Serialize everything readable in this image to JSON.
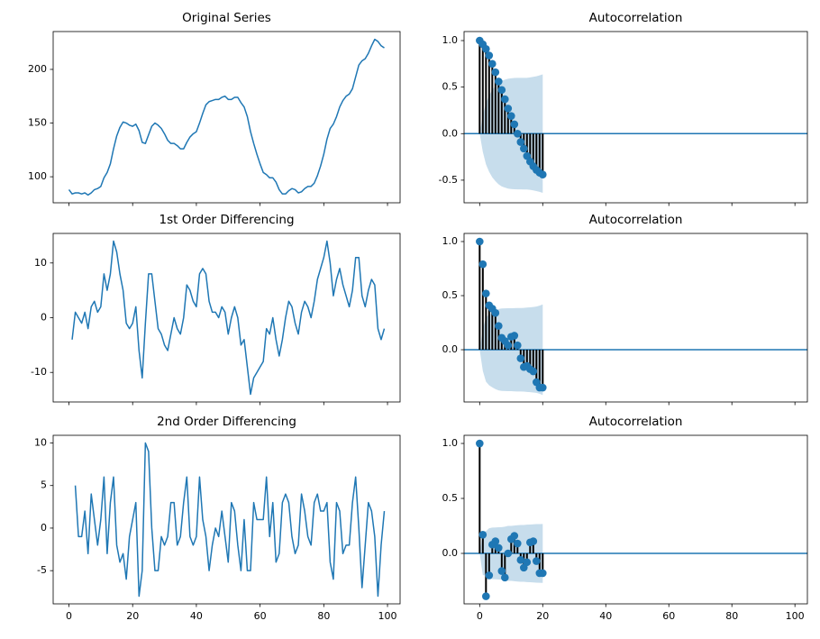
{
  "chart_data": [
    {
      "type": "line",
      "title": "Original Series",
      "color": "#1f77b4",
      "x": [
        0,
        1,
        2,
        3,
        4,
        5,
        6,
        7,
        8,
        9,
        10,
        11,
        12,
        13,
        14,
        15,
        16,
        17,
        18,
        19,
        20,
        21,
        22,
        23,
        24,
        25,
        26,
        27,
        28,
        29,
        30,
        31,
        32,
        33,
        34,
        35,
        36,
        37,
        38,
        39,
        40,
        41,
        42,
        43,
        44,
        45,
        46,
        47,
        48,
        49,
        50,
        51,
        52,
        53,
        54,
        55,
        56,
        57,
        58,
        59,
        60,
        61,
        62,
        63,
        64,
        65,
        66,
        67,
        68,
        69,
        70,
        71,
        72,
        73,
        74,
        75,
        76,
        77,
        78,
        79,
        80,
        81,
        82,
        83,
        84,
        85,
        86,
        87,
        88,
        89,
        90,
        91,
        92,
        93,
        94,
        95,
        96,
        97,
        98,
        99
      ],
      "values": [
        88,
        84,
        85,
        85,
        84,
        85,
        83,
        85,
        88,
        89,
        91,
        99,
        104,
        112,
        126,
        138,
        146,
        151,
        150,
        148,
        147,
        149,
        143,
        132,
        131,
        139,
        147,
        150,
        148,
        145,
        140,
        134,
        131,
        131,
        129,
        126,
        126,
        132,
        137,
        140,
        142,
        150,
        159,
        167,
        170,
        171,
        172,
        172,
        174,
        175,
        172,
        172,
        174,
        174,
        169,
        165,
        156,
        142,
        131,
        121,
        112,
        104,
        102,
        99,
        99,
        95,
        88,
        84,
        84,
        87,
        89,
        88,
        85,
        86,
        89,
        91,
        91,
        94,
        101,
        110,
        121,
        135,
        145,
        149,
        156,
        165,
        171,
        175,
        177,
        182,
        193,
        204,
        208,
        210,
        215,
        222,
        228,
        226,
        222,
        220
      ],
      "xlim": [
        -4.95,
        103.95
      ],
      "xticks": [
        0,
        20,
        40,
        60,
        80,
        100
      ],
      "show_xtick_labels": false,
      "ylim": [
        75.75,
        235.25
      ],
      "yticks": [
        100,
        150,
        200
      ]
    },
    {
      "type": "stem",
      "title": "Autocorrelation",
      "color": "#1f77b4",
      "stem_color": "#000000",
      "x": [
        0,
        1,
        2,
        3,
        4,
        5,
        6,
        7,
        8,
        9,
        10,
        11,
        12,
        13,
        14,
        15,
        16,
        17,
        18,
        19,
        20
      ],
      "values": [
        1.0,
        0.96,
        0.91,
        0.84,
        0.75,
        0.66,
        0.56,
        0.47,
        0.37,
        0.27,
        0.19,
        0.1,
        0.0,
        -0.09,
        -0.16,
        -0.24,
        -0.3,
        -0.35,
        -0.39,
        -0.42,
        -0.44
      ],
      "confidence_band": [
        0,
        0.196,
        0.33,
        0.41,
        0.47,
        0.51,
        0.545,
        0.567,
        0.58,
        0.59,
        0.595,
        0.598,
        0.599,
        0.599,
        0.6,
        0.6,
        0.604,
        0.61,
        0.617,
        0.626,
        0.637
      ],
      "xlim": [
        -4.95,
        103.95
      ],
      "xticks": [
        0,
        20,
        40,
        60,
        80,
        100
      ],
      "show_xtick_labels": false,
      "ylim": [
        -0.743,
        1.097
      ],
      "yticks": [
        -0.5,
        {
          "value": 0,
          "label": "0.0"
        },
        0.5,
        {
          "value": 1,
          "label": "1.0"
        }
      ]
    },
    {
      "type": "line",
      "title": "1st Order Differencing",
      "color": "#1f77b4",
      "x": [
        1,
        2,
        3,
        4,
        5,
        6,
        7,
        8,
        9,
        10,
        11,
        12,
        13,
        14,
        15,
        16,
        17,
        18,
        19,
        20,
        21,
        22,
        23,
        24,
        25,
        26,
        27,
        28,
        29,
        30,
        31,
        32,
        33,
        34,
        35,
        36,
        37,
        38,
        39,
        40,
        41,
        42,
        43,
        44,
        45,
        46,
        47,
        48,
        49,
        50,
        51,
        52,
        53,
        54,
        55,
        56,
        57,
        58,
        59,
        60,
        61,
        62,
        63,
        64,
        65,
        66,
        67,
        68,
        69,
        70,
        71,
        72,
        73,
        74,
        75,
        76,
        77,
        78,
        79,
        80,
        81,
        82,
        83,
        84,
        85,
        86,
        87,
        88,
        89,
        90,
        91,
        92,
        93,
        94,
        95,
        96,
        97,
        98,
        99
      ],
      "values": [
        -4,
        1,
        0,
        -1,
        1,
        -2,
        2,
        3,
        1,
        2,
        8,
        5,
        8,
        14,
        12,
        8,
        5,
        -1,
        -2,
        -1,
        2,
        -6,
        -11,
        -1,
        8,
        8,
        3,
        -2,
        -3,
        -5,
        -6,
        -3,
        0,
        -2,
        -3,
        0,
        6,
        5,
        3,
        2,
        8,
        9,
        8,
        3,
        1,
        1,
        0,
        2,
        1,
        -3,
        0,
        2,
        0,
        -5,
        -4,
        -9,
        -14,
        -11,
        -10,
        -9,
        -8,
        -2,
        -3,
        0,
        -4,
        -7,
        -4,
        0,
        3,
        2,
        -1,
        -3,
        1,
        3,
        2,
        0,
        3,
        7,
        9,
        11,
        14,
        10,
        4,
        7,
        9,
        6,
        4,
        2,
        5,
        11,
        11,
        4,
        2,
        5,
        7,
        6,
        -2,
        -4,
        -2
      ],
      "xlim": [
        -4.95,
        103.95
      ],
      "xticks": [
        0,
        20,
        40,
        60,
        80,
        100
      ],
      "show_xtick_labels": false,
      "ylim": [
        -15.4,
        15.4
      ],
      "yticks": [
        -10,
        0,
        10
      ]
    },
    {
      "type": "stem",
      "title": "Autocorrelation",
      "color": "#1f77b4",
      "stem_color": "#000000",
      "x": [
        0,
        1,
        2,
        3,
        4,
        5,
        6,
        7,
        8,
        9,
        10,
        11,
        12,
        13,
        14,
        15,
        16,
        17,
        18,
        19,
        20
      ],
      "values": [
        1.0,
        0.79,
        0.52,
        0.41,
        0.38,
        0.34,
        0.22,
        0.11,
        0.08,
        0.04,
        0.12,
        0.13,
        0.04,
        -0.08,
        -0.16,
        -0.15,
        -0.18,
        -0.2,
        -0.3,
        -0.35,
        -0.35
      ],
      "confidence_band": [
        0,
        0.196,
        0.296,
        0.329,
        0.348,
        0.364,
        0.376,
        0.381,
        0.382,
        0.383,
        0.383,
        0.385,
        0.386,
        0.386,
        0.387,
        0.39,
        0.392,
        0.395,
        0.399,
        0.407,
        0.419
      ],
      "xlim": [
        -4.95,
        103.95
      ],
      "xticks": [
        0,
        20,
        40,
        60,
        80,
        100
      ],
      "show_xtick_labels": false,
      "ylim": [
        -0.483,
        1.075
      ],
      "yticks": [
        {
          "value": 0,
          "label": "0.0"
        },
        0.5,
        {
          "value": 1,
          "label": "1.0"
        }
      ]
    },
    {
      "type": "line",
      "title": "2nd Order Differencing",
      "color": "#1f77b4",
      "x": [
        2,
        3,
        4,
        5,
        6,
        7,
        8,
        9,
        10,
        11,
        12,
        13,
        14,
        15,
        16,
        17,
        18,
        19,
        20,
        21,
        22,
        23,
        24,
        25,
        26,
        27,
        28,
        29,
        30,
        31,
        32,
        33,
        34,
        35,
        36,
        37,
        38,
        39,
        40,
        41,
        42,
        43,
        44,
        45,
        46,
        47,
        48,
        49,
        50,
        51,
        52,
        53,
        54,
        55,
        56,
        57,
        58,
        59,
        60,
        61,
        62,
        63,
        64,
        65,
        66,
        67,
        68,
        69,
        70,
        71,
        72,
        73,
        74,
        75,
        76,
        77,
        78,
        79,
        80,
        81,
        82,
        83,
        84,
        85,
        86,
        87,
        88,
        89,
        90,
        91,
        92,
        93,
        94,
        95,
        96,
        97,
        98,
        99
      ],
      "values": [
        5,
        -1,
        -1,
        2,
        -3,
        4,
        1,
        -2,
        1,
        6,
        -3,
        3,
        6,
        -2,
        -4,
        -3,
        -6,
        -1,
        1,
        3,
        -8,
        -5,
        10,
        9,
        0,
        -5,
        -5,
        -1,
        -2,
        -1,
        3,
        3,
        -2,
        -1,
        3,
        6,
        -1,
        -2,
        -1,
        6,
        1,
        -1,
        -5,
        -2,
        0,
        -1,
        2,
        -1,
        -4,
        3,
        2,
        -2,
        -5,
        1,
        -5,
        -5,
        3,
        1,
        1,
        1,
        6,
        -1,
        3,
        -4,
        -3,
        3,
        4,
        3,
        -1,
        -3,
        -2,
        4,
        2,
        -1,
        -2,
        3,
        4,
        2,
        2,
        3,
        -4,
        -6,
        3,
        2,
        -3,
        -2,
        -2,
        3,
        6,
        0,
        -7,
        -2,
        3,
        2,
        -1,
        -8,
        -2,
        2
      ],
      "xlim": [
        -4.95,
        103.95
      ],
      "xticks": [
        0,
        20,
        40,
        60,
        80,
        100
      ],
      "show_xtick_labels": true,
      "ylim": [
        -8.9,
        10.9
      ],
      "yticks": [
        -5,
        0,
        5,
        10
      ]
    },
    {
      "type": "stem",
      "title": "Autocorrelation",
      "color": "#1f77b4",
      "stem_color": "#000000",
      "x": [
        0,
        1,
        2,
        3,
        4,
        5,
        6,
        7,
        8,
        9,
        10,
        11,
        12,
        13,
        14,
        15,
        16,
        17,
        18,
        19,
        20
      ],
      "values": [
        1.0,
        0.17,
        -0.39,
        -0.2,
        0.08,
        0.11,
        0.05,
        -0.16,
        -0.22,
        0.0,
        0.13,
        0.16,
        0.09,
        -0.06,
        -0.13,
        -0.08,
        0.1,
        0.11,
        -0.07,
        -0.18,
        -0.18
      ],
      "confidence_band": [
        0,
        0.198,
        0.202,
        0.229,
        0.235,
        0.236,
        0.238,
        0.239,
        0.243,
        0.25,
        0.25,
        0.253,
        0.256,
        0.258,
        0.258,
        0.261,
        0.262,
        0.264,
        0.266,
        0.267,
        0.268
      ],
      "xlim": [
        -4.95,
        103.95
      ],
      "xticks": [
        0,
        20,
        40,
        60,
        80,
        100
      ],
      "show_xtick_labels": true,
      "ylim": [
        -0.459,
        1.074
      ],
      "yticks": [
        {
          "value": 0,
          "label": "0.0"
        },
        0.5,
        {
          "value": 1,
          "label": "1.0"
        }
      ]
    }
  ]
}
